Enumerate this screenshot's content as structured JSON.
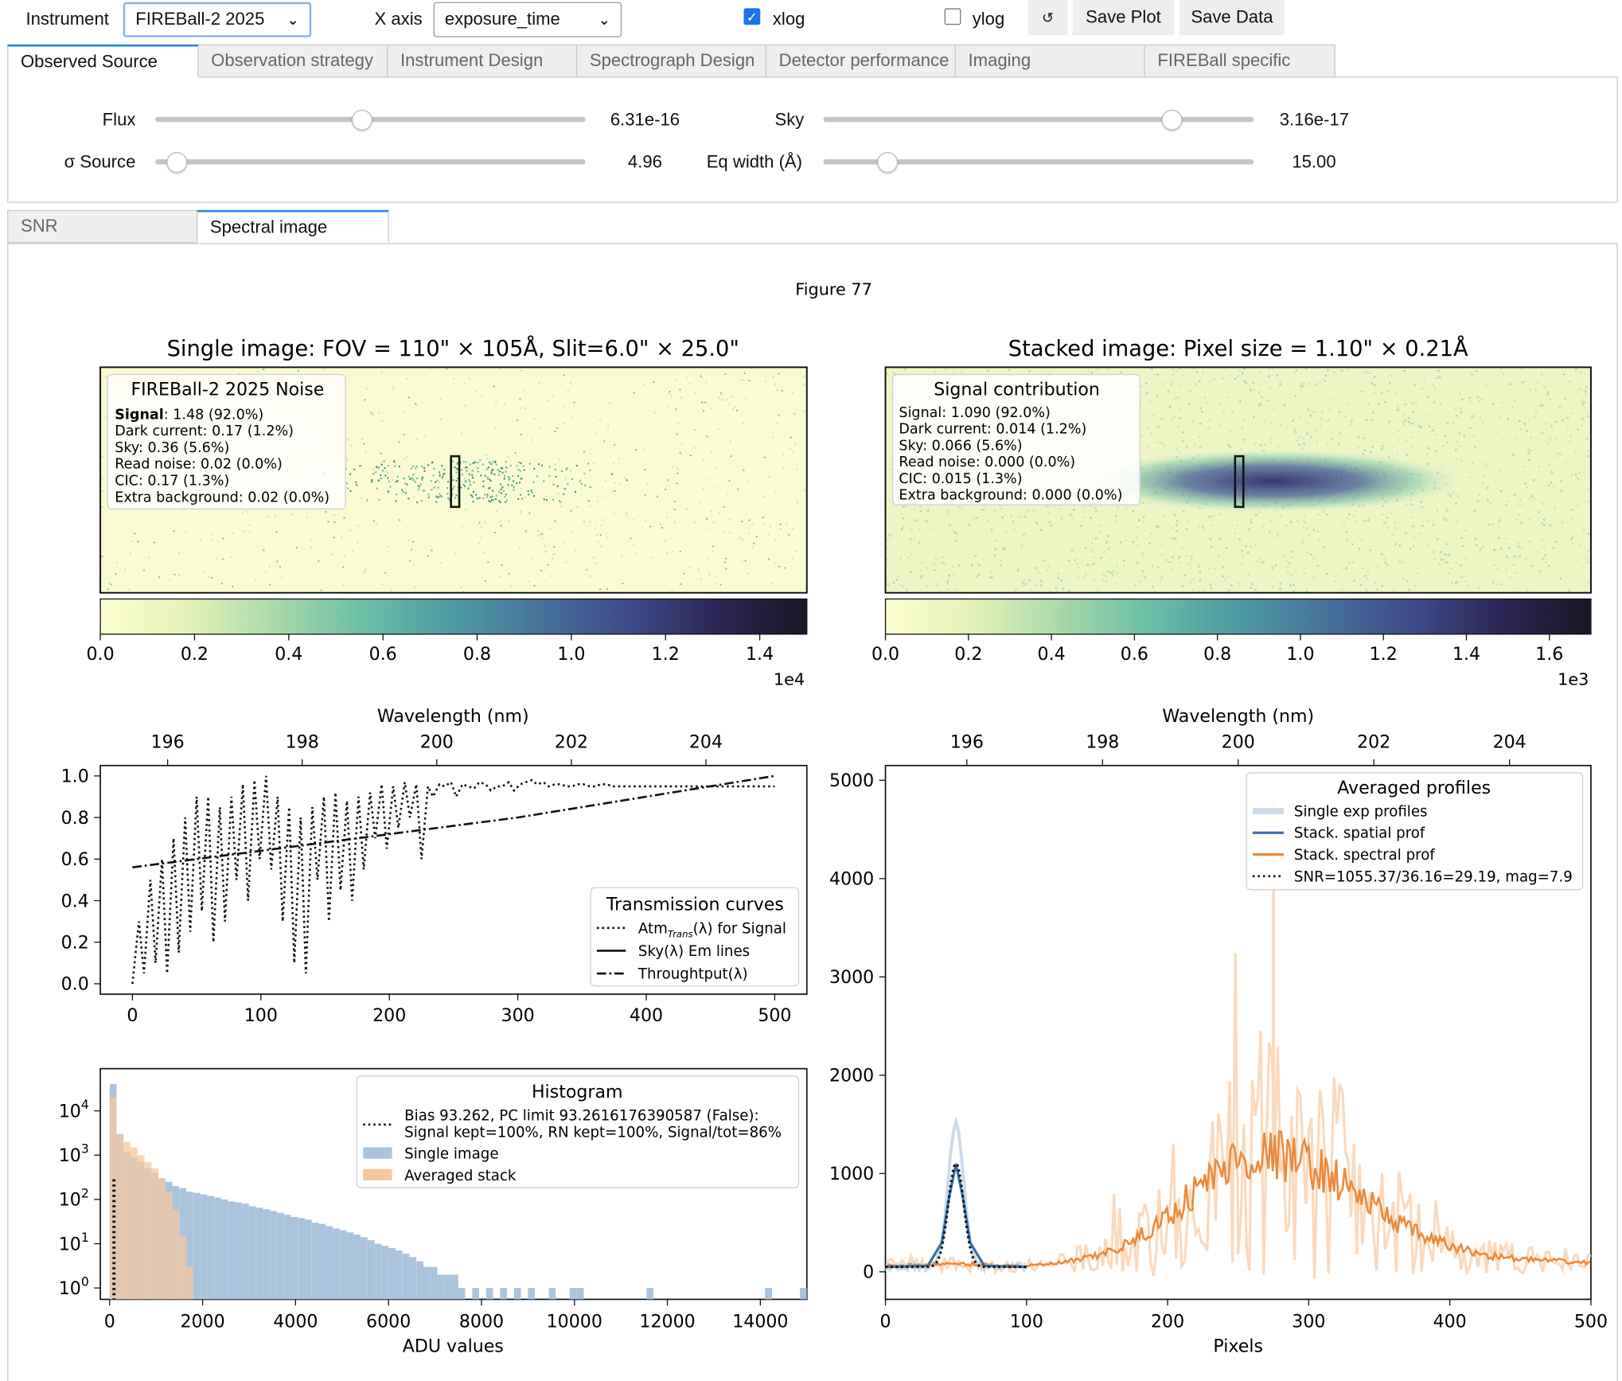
{
  "toolbar": {
    "instrument_label": "Instrument",
    "instrument_value": "FIREBall-2 2025",
    "xaxis_label": "X axis",
    "xaxis_value": "exposure_time",
    "xlog_label": "xlog",
    "xlog_checked": true,
    "ylog_label": "ylog",
    "ylog_checked": false,
    "reset_glyph": "↺",
    "save_plot": "Save Plot",
    "save_data": "Save Data"
  },
  "param_tabs": [
    "Observed Source",
    "Observation strategy",
    "Instrument Design",
    "Spectrograph Design",
    "Detector performance",
    "Imaging",
    "FIREBall specific"
  ],
  "param_tab_active": 0,
  "sliders": {
    "flux": {
      "label": "Flux",
      "value": "6.31e-16",
      "fraction": 0.48
    },
    "sigma_source": {
      "label": "σ Source",
      "value": "4.96",
      "fraction": 0.05
    },
    "sky": {
      "label": "Sky",
      "value": "3.16e-17",
      "fraction": 0.81
    },
    "eq_width": {
      "label": "Eq width (Å)",
      "value": "15.00",
      "fraction": 0.15
    }
  },
  "out_tabs": [
    "SNR",
    "Spectral image"
  ],
  "out_tab_active": 1,
  "figure_title": "Figure 77",
  "chart_data": [
    {
      "type": "heatmap",
      "title": "Single image: FOV = 110\" × 105Å, Slit=6.0\" × 25.0\"",
      "colorbar_ticks": [
        "0.0",
        "0.2",
        "0.4",
        "0.6",
        "0.8",
        "1.0",
        "1.2",
        "1.4"
      ],
      "colorbar_scale": "1e4",
      "colorbar_max": 1.5,
      "colormap": [
        "#fcfdcf",
        "#e3f2b6",
        "#a6d9a8",
        "#69bea6",
        "#4d99a3",
        "#45719a",
        "#3d4a88",
        "#2c2655",
        "#1a1524"
      ],
      "legend": {
        "title": "FIREBall-2 2025 Noise",
        "lines": [
          {
            "bold": "Signal",
            "text": ": 1.48 (92.0%)"
          },
          {
            "bold": "",
            "text": "Dark current: 0.17 (1.2%)"
          },
          {
            "bold": "",
            "text": "Sky: 0.36 (5.6%)"
          },
          {
            "bold": "",
            "text": "Read noise: 0.02 (0.0%)"
          },
          {
            "bold": "",
            "text": "CIC: 0.17 (1.3%)"
          },
          {
            "bold": "",
            "text": "Extra background: 0.02 (0.0%)"
          }
        ]
      }
    },
    {
      "type": "heatmap",
      "title": "Stacked image: Pixel size = 1.10\" × 0.21Å",
      "colorbar_ticks": [
        "0.0",
        "0.2",
        "0.4",
        "0.6",
        "0.8",
        "1.0",
        "1.2",
        "1.4",
        "1.6"
      ],
      "colorbar_scale": "1e3",
      "colorbar_max": 1.7,
      "colormap": [
        "#fcfdcf",
        "#e3f2b6",
        "#a6d9a8",
        "#69bea6",
        "#4d99a3",
        "#45719a",
        "#3d4a88",
        "#2c2655",
        "#1a1524"
      ],
      "legend": {
        "title": "Signal contribution",
        "lines": [
          {
            "bold": "",
            "text": "Signal: 1.090 (92.0%)"
          },
          {
            "bold": "",
            "text": "Dark current: 0.014 (1.2%)"
          },
          {
            "bold": "",
            "text": "Sky: 0.066 (5.6%)"
          },
          {
            "bold": "",
            "text": "Read noise: 0.000 (0.0%)"
          },
          {
            "bold": "",
            "text": "CIC: 0.015 (1.3%)"
          },
          {
            "bold": "",
            "text": "Extra background: 0.000 (0.0%)"
          }
        ]
      }
    },
    {
      "type": "line",
      "title": "",
      "top_xlabel": "Wavelength (nm)",
      "top_xticks": [
        "196",
        "198",
        "200",
        "202",
        "204"
      ],
      "top_xtick_values": [
        196,
        198,
        200,
        202,
        204
      ],
      "top_xlim": [
        195.0,
        205.5
      ],
      "xlim": [
        -25,
        525
      ],
      "ylim": [
        -0.05,
        1.05
      ],
      "xticks": [
        0,
        100,
        200,
        300,
        400,
        500
      ],
      "yticks": [
        "0.0",
        "0.2",
        "0.4",
        "0.6",
        "0.8",
        "1.0"
      ],
      "ytick_values": [
        0,
        0.2,
        0.4,
        0.6,
        0.8,
        1.0
      ],
      "legend": {
        "title": "Transmission curves",
        "entries": [
          {
            "label": "Atm",
            "sub": "Trans",
            "suffix": "(λ) for Signal",
            "style": "dotted"
          },
          {
            "label": "Sky(λ) Em lines",
            "sub": "",
            "suffix": "",
            "style": "solid"
          },
          {
            "label": "Throughtput(λ)",
            "sub": "",
            "suffix": "",
            "style": "dashdot"
          }
        ]
      },
      "series": [
        {
          "name": "Throughtput",
          "style": "dashdot",
          "x": [
            0,
            100,
            200,
            300,
            400,
            500
          ],
          "y": [
            0.56,
            0.64,
            0.72,
            0.8,
            0.9,
            1.0
          ]
        },
        {
          "name": "Atm",
          "style": "dotted",
          "x": [
            0,
            5,
            9,
            14,
            18,
            23,
            27,
            32,
            36,
            41,
            45,
            50,
            54,
            59,
            63,
            68,
            72,
            77,
            81,
            86,
            90,
            95,
            99,
            104,
            108,
            113,
            117,
            122,
            126,
            131,
            135,
            140,
            144,
            149,
            153,
            158,
            162,
            167,
            171,
            176,
            180,
            185,
            189,
            194,
            198,
            203,
            207,
            212,
            216,
            221,
            225,
            230,
            234,
            239,
            243,
            248,
            252,
            257,
            261,
            266,
            270,
            275,
            279,
            284,
            288,
            293,
            297,
            302,
            306,
            311,
            315,
            320,
            324,
            329,
            333,
            338,
            342,
            347,
            351,
            356,
            360,
            365,
            369,
            374,
            378,
            383,
            387,
            392,
            396,
            401,
            405,
            410,
            414,
            419,
            423,
            428,
            432,
            437,
            441,
            446,
            450,
            455,
            459,
            464,
            468,
            473,
            477,
            482,
            486,
            491,
            495,
            500
          ],
          "y": [
            0.0,
            0.3,
            0.05,
            0.5,
            0.1,
            0.6,
            0.05,
            0.7,
            0.15,
            0.8,
            0.25,
            0.9,
            0.35,
            0.9,
            0.2,
            0.85,
            0.3,
            0.9,
            0.5,
            0.96,
            0.4,
            0.98,
            0.6,
            1.0,
            0.55,
            0.9,
            0.3,
            0.85,
            0.1,
            0.8,
            0.05,
            0.85,
            0.5,
            0.9,
            0.3,
            0.92,
            0.45,
            0.88,
            0.4,
            0.9,
            0.55,
            0.92,
            0.7,
            0.96,
            0.65,
            0.95,
            0.75,
            0.97,
            0.8,
            0.96,
            0.6,
            0.95,
            0.9,
            0.96,
            0.95,
            0.97,
            0.9,
            0.96,
            0.95,
            0.94,
            0.97,
            0.96,
            0.93,
            0.95,
            0.95,
            0.97,
            0.93,
            0.96,
            0.97,
            0.98,
            0.96,
            0.97,
            0.95,
            0.96,
            0.96,
            0.95,
            0.95,
            0.96,
            0.96,
            0.95,
            0.95,
            0.96,
            0.96,
            0.95,
            0.95,
            0.95,
            0.95,
            0.95,
            0.95,
            0.95,
            0.95,
            0.95,
            0.95,
            0.95,
            0.95,
            0.95,
            0.95,
            0.95,
            0.95,
            0.95,
            0.95,
            0.95,
            0.95,
            0.95,
            0.95,
            0.95,
            0.95,
            0.95,
            0.95,
            0.95,
            0.95,
            0.95
          ]
        }
      ]
    },
    {
      "type": "line",
      "title": "",
      "top_xlabel": "Wavelength (nm)",
      "top_xticks": [
        "196",
        "198",
        "200",
        "202",
        "204"
      ],
      "top_xtick_values": [
        196,
        198,
        200,
        202,
        204
      ],
      "top_xlim": [
        194.8,
        205.2
      ],
      "xlabel": "Pixels",
      "xlim": [
        0,
        500
      ],
      "ylim": [
        -280,
        5150
      ],
      "xticks": [
        0,
        100,
        200,
        300,
        400,
        500
      ],
      "yticks": [
        0,
        1000,
        2000,
        3000,
        4000,
        5000
      ],
      "legend": {
        "title": "Averaged profiles",
        "entries": [
          {
            "label": "Single exp profiles",
            "style": "light-blue-thick"
          },
          {
            "label": "Stack. spatial prof",
            "style": "blue"
          },
          {
            "label": "Stack. spectral prof",
            "style": "orange"
          },
          {
            "label": "SNR=1055.37/36.16=29.19, mag=7.9",
            "style": "dotted"
          }
        ]
      },
      "colors": {
        "light_orange": "#fbd9bd",
        "orange": "#ec8a3c",
        "blue": "#3b6fa8",
        "light_blue": "#c9dbea"
      },
      "series": [
        {
          "name": "Stack. spectral prof (smooth envelope)",
          "x": [
            0,
            25,
            50,
            75,
            100,
            125,
            150,
            175,
            200,
            225,
            250,
            275,
            300,
            325,
            350,
            375,
            400,
            425,
            450,
            475,
            500
          ],
          "y": [
            60,
            70,
            80,
            70,
            60,
            90,
            160,
            300,
            560,
            900,
            1150,
            1200,
            1100,
            900,
            620,
            400,
            260,
            170,
            130,
            110,
            90
          ]
        },
        {
          "name": "Stack. spatial prof",
          "x": [
            0,
            30,
            40,
            45,
            50,
            55,
            60,
            70,
            100
          ],
          "y": [
            50,
            60,
            300,
            750,
            1100,
            750,
            300,
            60,
            50
          ]
        }
      ],
      "peak_annotation": {
        "x": 275,
        "y": 4900
      }
    },
    {
      "type": "bar",
      "title": "",
      "xlabel": "ADU values",
      "xlim": [
        -200,
        15000
      ],
      "ylog": true,
      "xticks": [
        0,
        2000,
        4000,
        6000,
        8000,
        10000,
        12000,
        14000
      ],
      "ytick_exps": [
        0,
        1,
        2,
        3,
        4
      ],
      "legend": {
        "title": "Histogram",
        "entries": [
          {
            "label": "Bias 93.262, PC limit 93.2616176390587 (False):",
            "label2": "Signal kept=100%, RN kept=100%, Signal/tot=86%",
            "style": "dotted"
          },
          {
            "label": "Single image",
            "style": "blue"
          },
          {
            "label": "Averaged stack",
            "style": "orange"
          }
        ]
      },
      "colors": {
        "single": "#aac4de",
        "stack": "#f6c79c",
        "overlap": "#c9b39a"
      },
      "series": [
        {
          "name": "Single image",
          "bin_width": 150,
          "x": [
            0,
            150,
            300,
            450,
            600,
            750,
            900,
            1050,
            1200,
            1350,
            1500,
            1650,
            1800,
            1950,
            2100,
            2250,
            2400,
            2550,
            2700,
            2850,
            3000,
            3150,
            3300,
            3450,
            3600,
            3750,
            3900,
            4050,
            4200,
            4350,
            4500,
            4650,
            4800,
            4950,
            5100,
            5250,
            5400,
            5550,
            5700,
            5850,
            6000,
            6150,
            6300,
            6450,
            6600,
            6750,
            6900,
            7050,
            7200,
            7350,
            7500,
            7800,
            8100,
            8400,
            8700,
            9000,
            9450,
            9900,
            10050,
            11550,
            14100,
            14850
          ],
          "y": [
            40000,
            3000,
            1200,
            900,
            700,
            500,
            400,
            300,
            250,
            200,
            180,
            150,
            140,
            130,
            120,
            110,
            100,
            90,
            85,
            80,
            70,
            65,
            60,
            55,
            50,
            45,
            40,
            38,
            35,
            30,
            28,
            25,
            22,
            20,
            18,
            16,
            14,
            12,
            10,
            9,
            8,
            7,
            6,
            5,
            4,
            3,
            3,
            2,
            2,
            2,
            1,
            1,
            1,
            1,
            1,
            1,
            1,
            1,
            1,
            1,
            1,
            1
          ]
        },
        {
          "name": "Averaged stack",
          "bin_width": 150,
          "x": [
            0,
            150,
            300,
            450,
            600,
            750,
            900,
            1050,
            1200,
            1350,
            1500,
            1650
          ],
          "y": [
            20000,
            3000,
            2000,
            1500,
            1000,
            700,
            500,
            300,
            150,
            60,
            15,
            3
          ]
        }
      ]
    }
  ]
}
